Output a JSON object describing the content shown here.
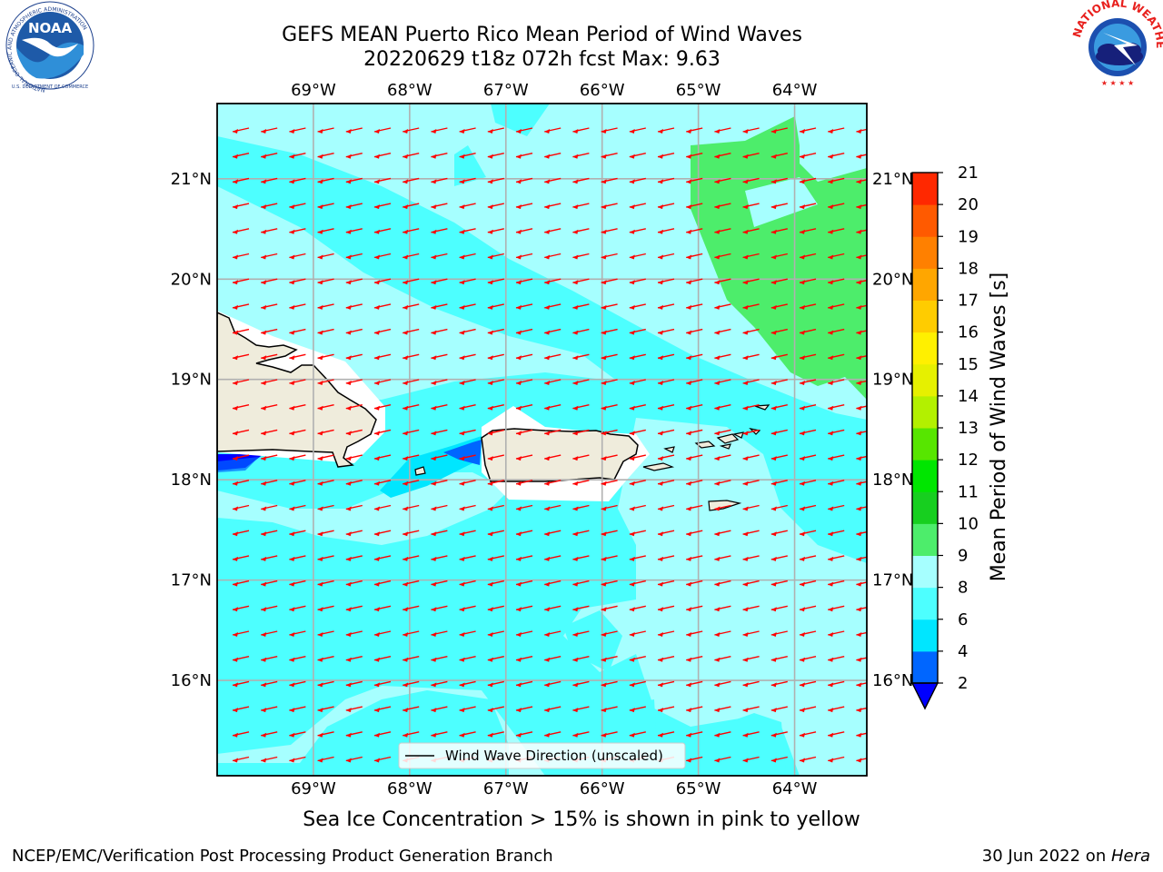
{
  "title": {
    "line1": "GEFS MEAN Puerto Rico Mean Period of Wind Waves",
    "line2": "20220629 t18z 072h fcst   Max: 9.63"
  },
  "map": {
    "longitude_labels": [
      "69°W",
      "68°W",
      "67°W",
      "66°W",
      "65°W",
      "64°W"
    ],
    "latitude_labels": [
      "21°N",
      "20°N",
      "19°N",
      "18°N",
      "17°N",
      "16°N"
    ],
    "longitude_values": [
      -69,
      -68,
      -67,
      -66,
      -65,
      -64
    ],
    "latitude_values": [
      21,
      20,
      19,
      18,
      17,
      16
    ],
    "lon_range": [
      -70,
      -63.25
    ],
    "lat_range": [
      15.05,
      21.75
    ],
    "land_color": "#efecdc",
    "vector_color": "#ff0000",
    "vector_direction": "toward west-southwest",
    "legend_label": "Wind Wave Direction (unscaled)",
    "legend_location": "bottom-center"
  },
  "colorbar": {
    "title": "Mean Period of Wind Waves [s]",
    "tick_labels": [
      "2",
      "4",
      "6",
      "8",
      "9",
      "10",
      "11",
      "12",
      "13",
      "14",
      "15",
      "16",
      "17",
      "18",
      "19",
      "20",
      "21"
    ],
    "levels": [
      2,
      4,
      6,
      8,
      9,
      10,
      11,
      12,
      13,
      14,
      15,
      16,
      17,
      18,
      19,
      20,
      21
    ],
    "colors": [
      "#0066ff",
      "#00e6ff",
      "#4dffff",
      "#a6ffff",
      "#4ded6b",
      "#17cf1f",
      "#00e600",
      "#57e600",
      "#b3f000",
      "#e6f000",
      "#fff000",
      "#ffcc00",
      "#ffa600",
      "#ff8000",
      "#ff5a00",
      "#ff2800",
      "#ff0000"
    ],
    "extend_min_color": "#0000ff"
  },
  "subtitle": "Sea Ice Concentration > 15% is shown in pink to yellow",
  "footer": {
    "left": "NCEP/EMC/Verification Post Processing Product Generation Branch",
    "right_prefix": "30 Jun 2022 on ",
    "right_host": "Hera"
  },
  "logos": {
    "noaa_label": "NOAA",
    "noaa_ring_text": "NATIONAL OCEANIC AND ATMOSPHERIC ADMINISTRATION",
    "noaa_bottom_text": "U.S. DEPARTMENT OF COMMERCE",
    "nws_ring_text": "NATIONAL WEATHER SERVICE"
  }
}
